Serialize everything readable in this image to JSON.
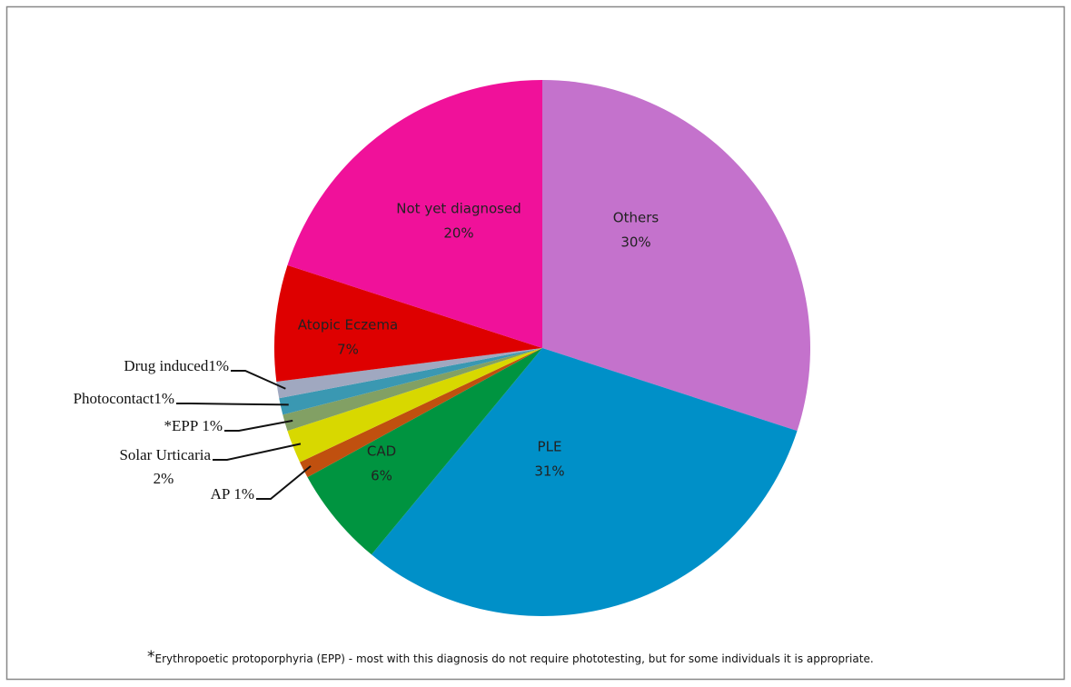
{
  "chart_data": {
    "type": "pie",
    "categories": [
      "Others",
      "PLE",
      "CAD",
      "AP",
      "Solar Urticaria",
      "*EPP",
      "Photocontact",
      "Drug induced",
      "Atopic Eczema",
      "Not yet diagnosed"
    ],
    "values": [
      30,
      31,
      6,
      1,
      2,
      1,
      1,
      1,
      7,
      20
    ],
    "value_labels": [
      "30%",
      "31%",
      "6%",
      "1%",
      "2%",
      "1%",
      "1%",
      "1%",
      "7%",
      "20%"
    ],
    "colors": [
      "#c472cc",
      "#0090c8",
      "#009440",
      "#c0500f",
      "#d8d800",
      "#82a064",
      "#3a98b2",
      "#a0a8c0",
      "#de0000",
      "#f0119a"
    ],
    "annotation": {
      "marker": "*",
      "text": "Erythropoetic protoporphyria (EPP) - most with this diagnosis do not require phototesting, but for some individuals it is appropriate."
    }
  }
}
